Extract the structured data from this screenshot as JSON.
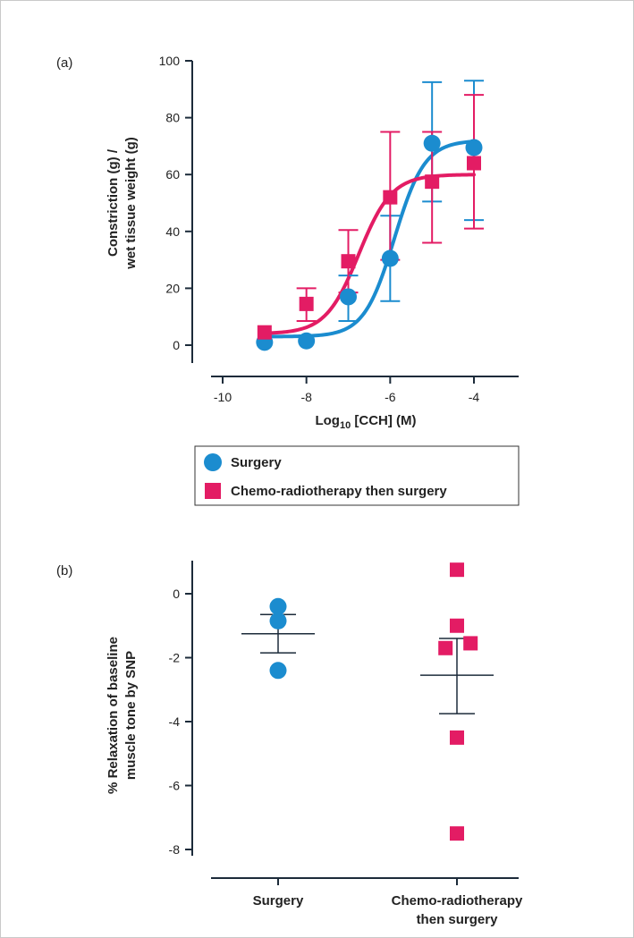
{
  "colors": {
    "surgery": "#1b8ccf",
    "chemo": "#e31c64",
    "axis": "#1c2b3a",
    "mean_line": "#1c2b3a"
  },
  "chart_data": [
    {
      "type": "scatter",
      "panel_label": "(a)",
      "xlabel": "Log",
      "xlabel_sub": "10",
      "xlabel_rest": " [CCH] (M)",
      "ylabel_line1": "Constriction (g) /",
      "ylabel_line2": "wet tissue weight (g)",
      "xlim": [
        -10.5,
        -2.5
      ],
      "ylim": [
        -5,
        100
      ],
      "xticks": [
        -10,
        -8,
        -6,
        -4
      ],
      "xtick_labels": [
        "-10",
        "-8",
        "-6",
        "-4"
      ],
      "yticks": [
        0,
        20,
        40,
        60,
        80,
        100
      ],
      "ytick_labels": [
        "0",
        "20",
        "40",
        "60",
        "80",
        "100"
      ],
      "legend": [
        "Surgery",
        "Chemo-radiotherapy then surgery"
      ],
      "series": [
        {
          "name": "Surgery",
          "color_key": "surgery",
          "marker": "circle",
          "x": [
            -9,
            -8,
            -7,
            -6,
            -5,
            -4
          ],
          "y": [
            1,
            1.5,
            17,
            30.5,
            71,
            69.5
          ],
          "err_low": [
            null,
            null,
            8.5,
            15.5,
            50.5,
            44
          ],
          "err_high": [
            null,
            null,
            24.5,
            45.5,
            92.5,
            93
          ],
          "fit": {
            "bottom": 3,
            "top": 72,
            "logEC50": -5.9,
            "hill": 1.2
          }
        },
        {
          "name": "Chemo-radiotherapy then surgery",
          "color_key": "chemo",
          "marker": "square",
          "x": [
            -9,
            -8,
            -7,
            -6,
            -5,
            -4
          ],
          "y": [
            4.5,
            14.5,
            29.5,
            52,
            57.5,
            64
          ],
          "err_low": [
            null,
            8.5,
            18.5,
            30,
            36,
            41
          ],
          "err_high": [
            null,
            20,
            40.5,
            75,
            75,
            88
          ],
          "fit": {
            "bottom": 4,
            "top": 60,
            "logEC50": -6.75,
            "hill": 1.1
          }
        }
      ]
    },
    {
      "type": "scatter",
      "panel_label": "(b)",
      "ylabel_line1": "% Relaxation of baseline",
      "ylabel_line2": "muscle tone by SNP",
      "ylim": [
        -8.4,
        1
      ],
      "yticks": [
        0,
        -2,
        -4,
        -6,
        -8
      ],
      "ytick_labels": [
        "0",
        "-2",
        "-4",
        "-6",
        "-8"
      ],
      "categories": [
        "Surgery",
        "Chemo-radiotherapy then surgery"
      ],
      "category_lines": [
        [
          "Surgery"
        ],
        [
          "Chemo-radiotherapy",
          "then surgery"
        ]
      ],
      "series": [
        {
          "name": "Surgery",
          "color_key": "surgery",
          "marker": "circle",
          "points": [
            {
              "dx": 0,
              "y": -0.4
            },
            {
              "dx": 0,
              "y": -0.85
            },
            {
              "dx": 0,
              "y": -2.4
            }
          ],
          "mean": -1.25,
          "sem_low": -1.85,
          "sem_high": -0.65
        },
        {
          "name": "Chemo-radiotherapy then surgery",
          "color_key": "chemo",
          "marker": "square",
          "points": [
            {
              "dx": 0,
              "y": 0.75
            },
            {
              "dx": 0,
              "y": -1.0
            },
            {
              "dx": -0.32,
              "y": -1.7
            },
            {
              "dx": 0.38,
              "y": -1.55
            },
            {
              "dx": 0,
              "y": -4.5
            },
            {
              "dx": 0,
              "y": -7.5
            }
          ],
          "mean": -2.55,
          "sem_low": -3.75,
          "sem_high": -1.4
        }
      ]
    }
  ]
}
